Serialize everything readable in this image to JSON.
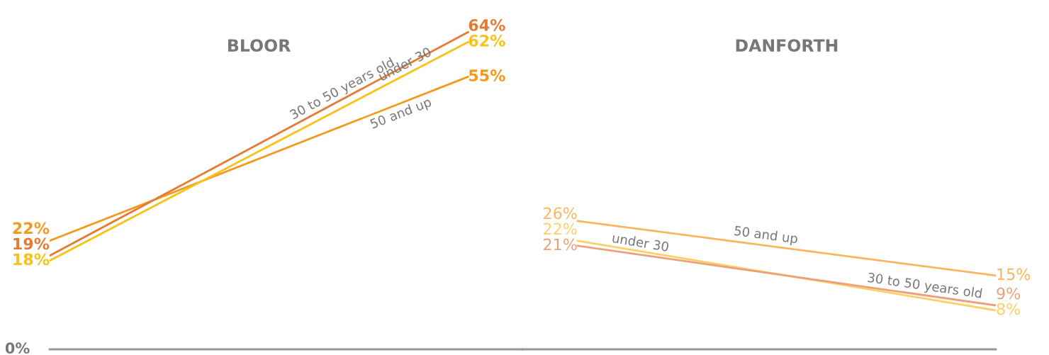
{
  "chart_data": [
    {
      "type": "line",
      "title": "BLOOR",
      "categories": [
        null,
        null
      ],
      "annotations": [
        "0%"
      ],
      "grid": false,
      "legend": false,
      "marker": "none",
      "line_style": "solid",
      "series": [
        {
          "name": "50 and up",
          "color": "#f39a1e",
          "values": [
            22,
            55
          ],
          "value_labels": [
            "22%",
            "55%"
          ]
        },
        {
          "name": "30 to 50 years old",
          "color": "#e57a35",
          "values": [
            19,
            64
          ],
          "value_labels": [
            "19%",
            "64%"
          ]
        },
        {
          "name": "under 30",
          "color": "#f7c21a",
          "values": [
            18,
            62
          ],
          "value_labels": [
            "18%",
            "62%"
          ]
        }
      ]
    },
    {
      "type": "line",
      "title": "DANFORTH",
      "categories": [
        null,
        null
      ],
      "grid": false,
      "legend": false,
      "marker": "none",
      "line_style": "solid",
      "series": [
        {
          "name": "50 and up",
          "color": "#f8b65f",
          "values": [
            26,
            15
          ],
          "value_labels": [
            "26%",
            "15%"
          ]
        },
        {
          "name": "under 30",
          "color": "#fcd066",
          "values": [
            22,
            8
          ],
          "value_labels": [
            "22%",
            "8%"
          ]
        },
        {
          "name": "30 to 50 years old",
          "color": "#eba07c",
          "values": [
            21,
            9
          ],
          "value_labels": [
            "21%",
            "9%"
          ]
        }
      ]
    }
  ]
}
